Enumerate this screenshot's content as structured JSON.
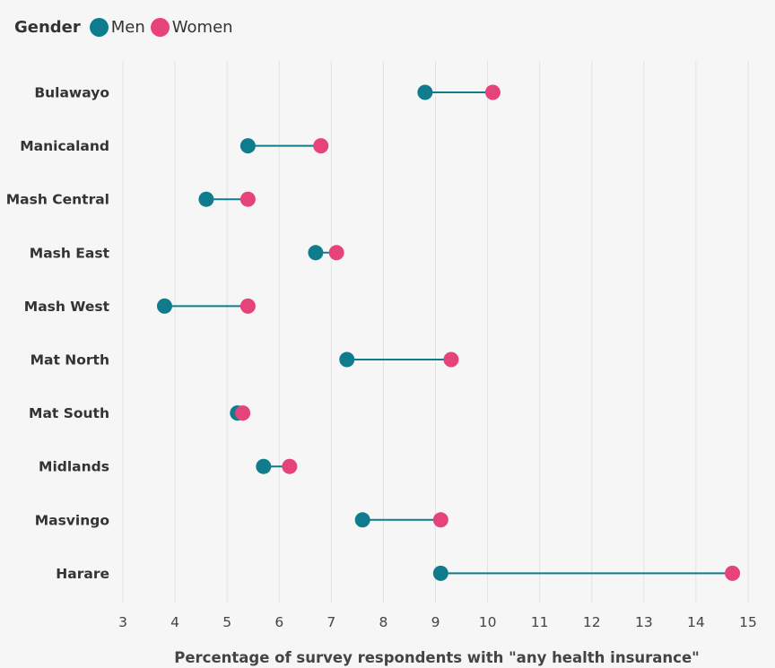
{
  "legend": {
    "title": "Gender",
    "items": [
      {
        "label": "Men",
        "color": "#0e7c8c"
      },
      {
        "label": "Women",
        "color": "#e6437a"
      }
    ]
  },
  "chart_data": {
    "type": "dumbbell",
    "title": "",
    "xlabel": "Percentage of survey respondents with \"any health insurance\"",
    "ylabel": "",
    "xlim": [
      3,
      15
    ],
    "xticks": [
      3,
      4,
      5,
      6,
      7,
      8,
      9,
      10,
      11,
      12,
      13,
      14,
      15
    ],
    "grid": true,
    "legend_position": "top-left",
    "categories": [
      "Bulawayo",
      "Manicaland",
      "Mash Central",
      "Mash East",
      "Mash West",
      "Mat North",
      "Mat South",
      "Midlands",
      "Masvingo",
      "Harare"
    ],
    "series": [
      {
        "name": "Men",
        "color": "#0e7c8c",
        "values": [
          8.8,
          5.4,
          4.6,
          6.7,
          3.8,
          7.3,
          5.2,
          5.7,
          7.6,
          9.1
        ]
      },
      {
        "name": "Women",
        "color": "#e6437a",
        "values": [
          10.1,
          6.8,
          5.4,
          7.1,
          5.4,
          9.3,
          5.3,
          6.2,
          9.1,
          14.7
        ]
      }
    ]
  }
}
